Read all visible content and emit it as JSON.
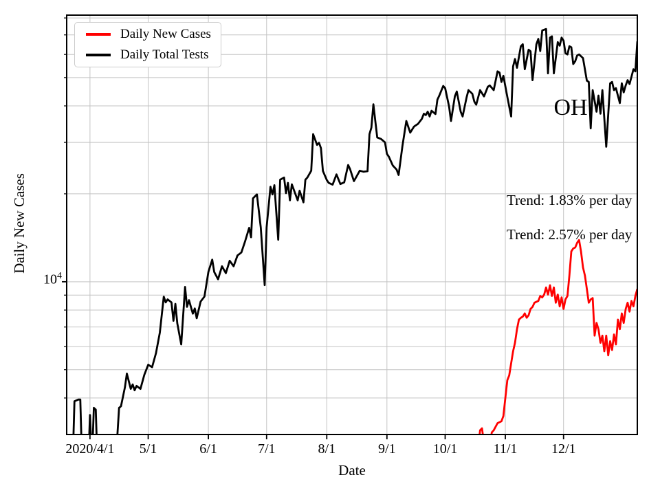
{
  "chart_data": {
    "type": "line",
    "title": "",
    "state_label": "OH",
    "xlabel": "Date",
    "ylabel": "Daily New Cases",
    "grid_color": "#c3c3c3",
    "grid": true,
    "legend_position": "upper left",
    "x_axis": {
      "start": "2020-03-20",
      "end": "2021-01-08",
      "span_days": 294,
      "ticks": [
        {
          "label": "2020/4/1",
          "day": 12
        },
        {
          "label": "5/1",
          "day": 42
        },
        {
          "label": "6/1",
          "day": 73
        },
        {
          "label": "7/1",
          "day": 103
        },
        {
          "label": "8/1",
          "day": 134
        },
        {
          "label": "9/1",
          "day": 165
        },
        {
          "label": "10/1",
          "day": 195
        },
        {
          "label": "11/1",
          "day": 226
        },
        {
          "label": "12/1",
          "day": 256
        }
      ]
    },
    "y_axis": {
      "scale": "log",
      "min": 3000,
      "max": 81800,
      "major_tick_value": 10000,
      "major_tick_base": "10",
      "major_tick_exp": "4",
      "gridline_values": [
        4000,
        5000,
        6000,
        7000,
        8000,
        9000,
        10000,
        20000,
        30000,
        40000,
        50000,
        60000,
        70000,
        80000
      ]
    },
    "series": [
      {
        "name": "Daily New Cases",
        "color": "#ff0000",
        "trend_text": "Trend: 2.57% per day",
        "points": [
          [
            212,
            2700
          ],
          [
            213,
            3100
          ],
          [
            214,
            3150
          ],
          [
            215,
            2800
          ],
          [
            216,
            2500
          ],
          [
            218,
            2700
          ],
          [
            219,
            3050
          ],
          [
            220,
            3100
          ],
          [
            222,
            3280
          ],
          [
            224,
            3330
          ],
          [
            225,
            3470
          ],
          [
            226,
            3990
          ],
          [
            227,
            4600
          ],
          [
            228,
            4780
          ],
          [
            229,
            5260
          ],
          [
            230,
            5780
          ],
          [
            231,
            6180
          ],
          [
            232,
            6880
          ],
          [
            233,
            7420
          ],
          [
            234,
            7530
          ],
          [
            235,
            7600
          ],
          [
            236,
            7790
          ],
          [
            237,
            7530
          ],
          [
            238,
            7680
          ],
          [
            239,
            8070
          ],
          [
            240,
            8200
          ],
          [
            241,
            8480
          ],
          [
            243,
            8600
          ],
          [
            244,
            8940
          ],
          [
            245,
            8840
          ],
          [
            246,
            9040
          ],
          [
            247,
            9560
          ],
          [
            248,
            9040
          ],
          [
            249,
            9730
          ],
          [
            250,
            8940
          ],
          [
            251,
            9560
          ],
          [
            252,
            8480
          ],
          [
            253,
            9040
          ],
          [
            254,
            8240
          ],
          [
            255,
            8840
          ],
          [
            256,
            8070
          ],
          [
            257,
            8700
          ],
          [
            258,
            8940
          ],
          [
            259,
            10500
          ],
          [
            260,
            12700
          ],
          [
            261,
            13000
          ],
          [
            262,
            13100
          ],
          [
            263,
            13600
          ],
          [
            264,
            13900
          ],
          [
            265,
            12700
          ],
          [
            266,
            11200
          ],
          [
            267,
            10500
          ],
          [
            268,
            9450
          ],
          [
            269,
            8480
          ],
          [
            270,
            8700
          ],
          [
            271,
            8790
          ],
          [
            272,
            6540
          ],
          [
            273,
            7230
          ],
          [
            274,
            6880
          ],
          [
            275,
            6180
          ],
          [
            276,
            6540
          ],
          [
            277,
            5780
          ],
          [
            278,
            6540
          ],
          [
            279,
            5600
          ],
          [
            280,
            6260
          ],
          [
            281,
            5840
          ],
          [
            282,
            6600
          ],
          [
            283,
            6100
          ],
          [
            284,
            7420
          ],
          [
            285,
            6880
          ],
          [
            286,
            7790
          ],
          [
            287,
            7230
          ],
          [
            288,
            8070
          ],
          [
            289,
            8480
          ],
          [
            290,
            7900
          ],
          [
            291,
            8600
          ],
          [
            292,
            8240
          ],
          [
            293,
            8940
          ],
          [
            294,
            9450
          ]
        ]
      },
      {
        "name": "Daily Total Tests",
        "color": "#000000",
        "trend_text": "Trend: 1.83% per day",
        "points": [
          [
            0,
            2000
          ],
          [
            2,
            2400
          ],
          [
            3,
            2300
          ],
          [
            4,
            3900
          ],
          [
            6,
            3950
          ],
          [
            7,
            3950
          ],
          [
            8,
            2300
          ],
          [
            10,
            2100
          ],
          [
            11,
            2300
          ],
          [
            12,
            3500
          ],
          [
            13,
            2400
          ],
          [
            14,
            3700
          ],
          [
            15,
            3650
          ],
          [
            16,
            2200
          ],
          [
            18,
            2000
          ],
          [
            21,
            1900
          ],
          [
            24,
            2200
          ],
          [
            26,
            2900
          ],
          [
            27,
            3700
          ],
          [
            28,
            3750
          ],
          [
            30,
            4350
          ],
          [
            31,
            4850
          ],
          [
            33,
            4300
          ],
          [
            34,
            4450
          ],
          [
            35,
            4250
          ],
          [
            36,
            4400
          ],
          [
            38,
            4300
          ],
          [
            40,
            4800
          ],
          [
            42,
            5200
          ],
          [
            44,
            5100
          ],
          [
            46,
            5700
          ],
          [
            48,
            6700
          ],
          [
            49,
            7700
          ],
          [
            50,
            8890
          ],
          [
            51,
            8500
          ],
          [
            52,
            8700
          ],
          [
            54,
            8500
          ],
          [
            55,
            7350
          ],
          [
            56,
            8400
          ],
          [
            57,
            7200
          ],
          [
            59,
            6100
          ],
          [
            61,
            9600
          ],
          [
            62,
            8200
          ],
          [
            63,
            8650
          ],
          [
            65,
            7780
          ],
          [
            66,
            8100
          ],
          [
            67,
            7500
          ],
          [
            69,
            8550
          ],
          [
            71,
            8900
          ],
          [
            73,
            10800
          ],
          [
            75,
            11900
          ],
          [
            76,
            10800
          ],
          [
            78,
            10200
          ],
          [
            80,
            11300
          ],
          [
            82,
            10700
          ],
          [
            84,
            11800
          ],
          [
            86,
            11300
          ],
          [
            88,
            12300
          ],
          [
            90,
            12600
          ],
          [
            92,
            13800
          ],
          [
            94,
            15300
          ],
          [
            95,
            14200
          ],
          [
            96,
            19300
          ],
          [
            98,
            19900
          ],
          [
            100,
            15350
          ],
          [
            102,
            9740
          ],
          [
            103,
            15350
          ],
          [
            104,
            18000
          ],
          [
            105,
            21150
          ],
          [
            106,
            19900
          ],
          [
            107,
            21400
          ],
          [
            109,
            13930
          ],
          [
            110,
            22350
          ],
          [
            112,
            22740
          ],
          [
            113,
            20100
          ],
          [
            114,
            21800
          ],
          [
            115,
            19000
          ],
          [
            116,
            21550
          ],
          [
            119,
            19000
          ],
          [
            120,
            20500
          ],
          [
            122,
            18700
          ],
          [
            123,
            22350
          ],
          [
            124,
            22740
          ],
          [
            126,
            24000
          ],
          [
            127,
            32000
          ],
          [
            129,
            29400
          ],
          [
            130,
            29900
          ],
          [
            131,
            28700
          ],
          [
            132,
            23950
          ],
          [
            134,
            22300
          ],
          [
            135,
            21800
          ],
          [
            137,
            21500
          ],
          [
            139,
            23300
          ],
          [
            141,
            21600
          ],
          [
            143,
            21900
          ],
          [
            145,
            25100
          ],
          [
            146,
            24300
          ],
          [
            148,
            22100
          ],
          [
            151,
            24000
          ],
          [
            153,
            23800
          ],
          [
            155,
            23900
          ],
          [
            156,
            32000
          ],
          [
            157,
            33700
          ],
          [
            158,
            40500
          ],
          [
            159,
            35500
          ],
          [
            160,
            31200
          ],
          [
            162,
            30800
          ],
          [
            164,
            30000
          ],
          [
            165,
            27400
          ],
          [
            166,
            26800
          ],
          [
            168,
            25000
          ],
          [
            170,
            24200
          ],
          [
            171,
            23200
          ],
          [
            173,
            29200
          ],
          [
            175,
            35500
          ],
          [
            177,
            32400
          ],
          [
            179,
            34000
          ],
          [
            181,
            34700
          ],
          [
            183,
            36100
          ],
          [
            184,
            37600
          ],
          [
            185,
            37200
          ],
          [
            186,
            38200
          ],
          [
            187,
            36800
          ],
          [
            188,
            38500
          ],
          [
            190,
            37500
          ],
          [
            191,
            42000
          ],
          [
            192,
            43400
          ],
          [
            194,
            46800
          ],
          [
            195,
            46000
          ],
          [
            197,
            39800
          ],
          [
            198,
            35500
          ],
          [
            200,
            43100
          ],
          [
            201,
            44800
          ],
          [
            203,
            38200
          ],
          [
            204,
            36800
          ],
          [
            206,
            42700
          ],
          [
            207,
            45300
          ],
          [
            209,
            44000
          ],
          [
            210,
            41400
          ],
          [
            211,
            40400
          ],
          [
            213,
            45300
          ],
          [
            215,
            43100
          ],
          [
            217,
            46500
          ],
          [
            218,
            47000
          ],
          [
            220,
            45300
          ],
          [
            222,
            52500
          ],
          [
            223,
            52000
          ],
          [
            224,
            48300
          ],
          [
            225,
            50700
          ],
          [
            227,
            43000
          ],
          [
            229,
            36800
          ],
          [
            230,
            54600
          ],
          [
            231,
            57900
          ],
          [
            232,
            54000
          ],
          [
            234,
            64000
          ],
          [
            235,
            65000
          ],
          [
            236,
            53400
          ],
          [
            238,
            62300
          ],
          [
            239,
            61500
          ],
          [
            240,
            49000
          ],
          [
            242,
            65000
          ],
          [
            243,
            67800
          ],
          [
            244,
            61600
          ],
          [
            245,
            72500
          ],
          [
            247,
            73300
          ],
          [
            248,
            51700
          ],
          [
            249,
            68500
          ],
          [
            250,
            69200
          ],
          [
            251,
            51700
          ],
          [
            253,
            66100
          ],
          [
            254,
            64300
          ],
          [
            255,
            68500
          ],
          [
            256,
            66900
          ],
          [
            257,
            60600
          ],
          [
            258,
            60000
          ],
          [
            259,
            64000
          ],
          [
            260,
            63500
          ],
          [
            261,
            55600
          ],
          [
            262,
            56900
          ],
          [
            263,
            59500
          ],
          [
            264,
            60000
          ],
          [
            266,
            58300
          ],
          [
            268,
            48800
          ],
          [
            269,
            48300
          ],
          [
            270,
            33500
          ],
          [
            271,
            45300
          ],
          [
            273,
            38200
          ],
          [
            274,
            43400
          ],
          [
            275,
            37600
          ],
          [
            276,
            45300
          ],
          [
            278,
            29000
          ],
          [
            280,
            47800
          ],
          [
            281,
            48300
          ],
          [
            282,
            45300
          ],
          [
            283,
            46000
          ],
          [
            285,
            40900
          ],
          [
            286,
            47800
          ],
          [
            287,
            44500
          ],
          [
            288,
            47000
          ],
          [
            289,
            49000
          ],
          [
            290,
            47500
          ],
          [
            292,
            53400
          ],
          [
            293,
            52500
          ],
          [
            294,
            66500
          ]
        ]
      }
    ]
  }
}
